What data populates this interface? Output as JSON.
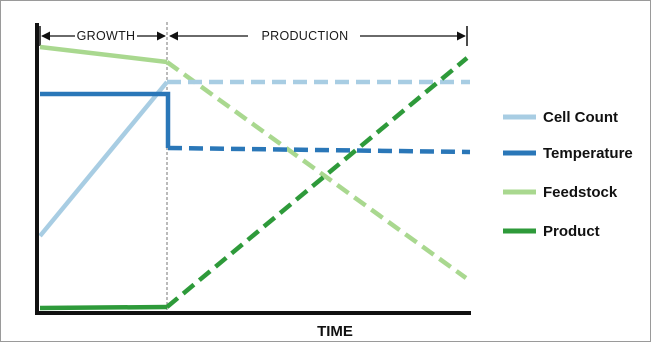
{
  "phases": {
    "growth": "GROWTH",
    "production": "PRODUCTION"
  },
  "axis": {
    "x_label": "TIME"
  },
  "legend": [
    {
      "key": "cell_count",
      "label": "Cell Count",
      "color": "#a8cde3"
    },
    {
      "key": "temperature",
      "label": "Temperature",
      "color": "#2a77b8"
    },
    {
      "key": "feedstock",
      "label": "Feedstock",
      "color": "#a9d88f"
    },
    {
      "key": "product",
      "label": "Product",
      "color": "#2e9a3a"
    }
  ]
}
